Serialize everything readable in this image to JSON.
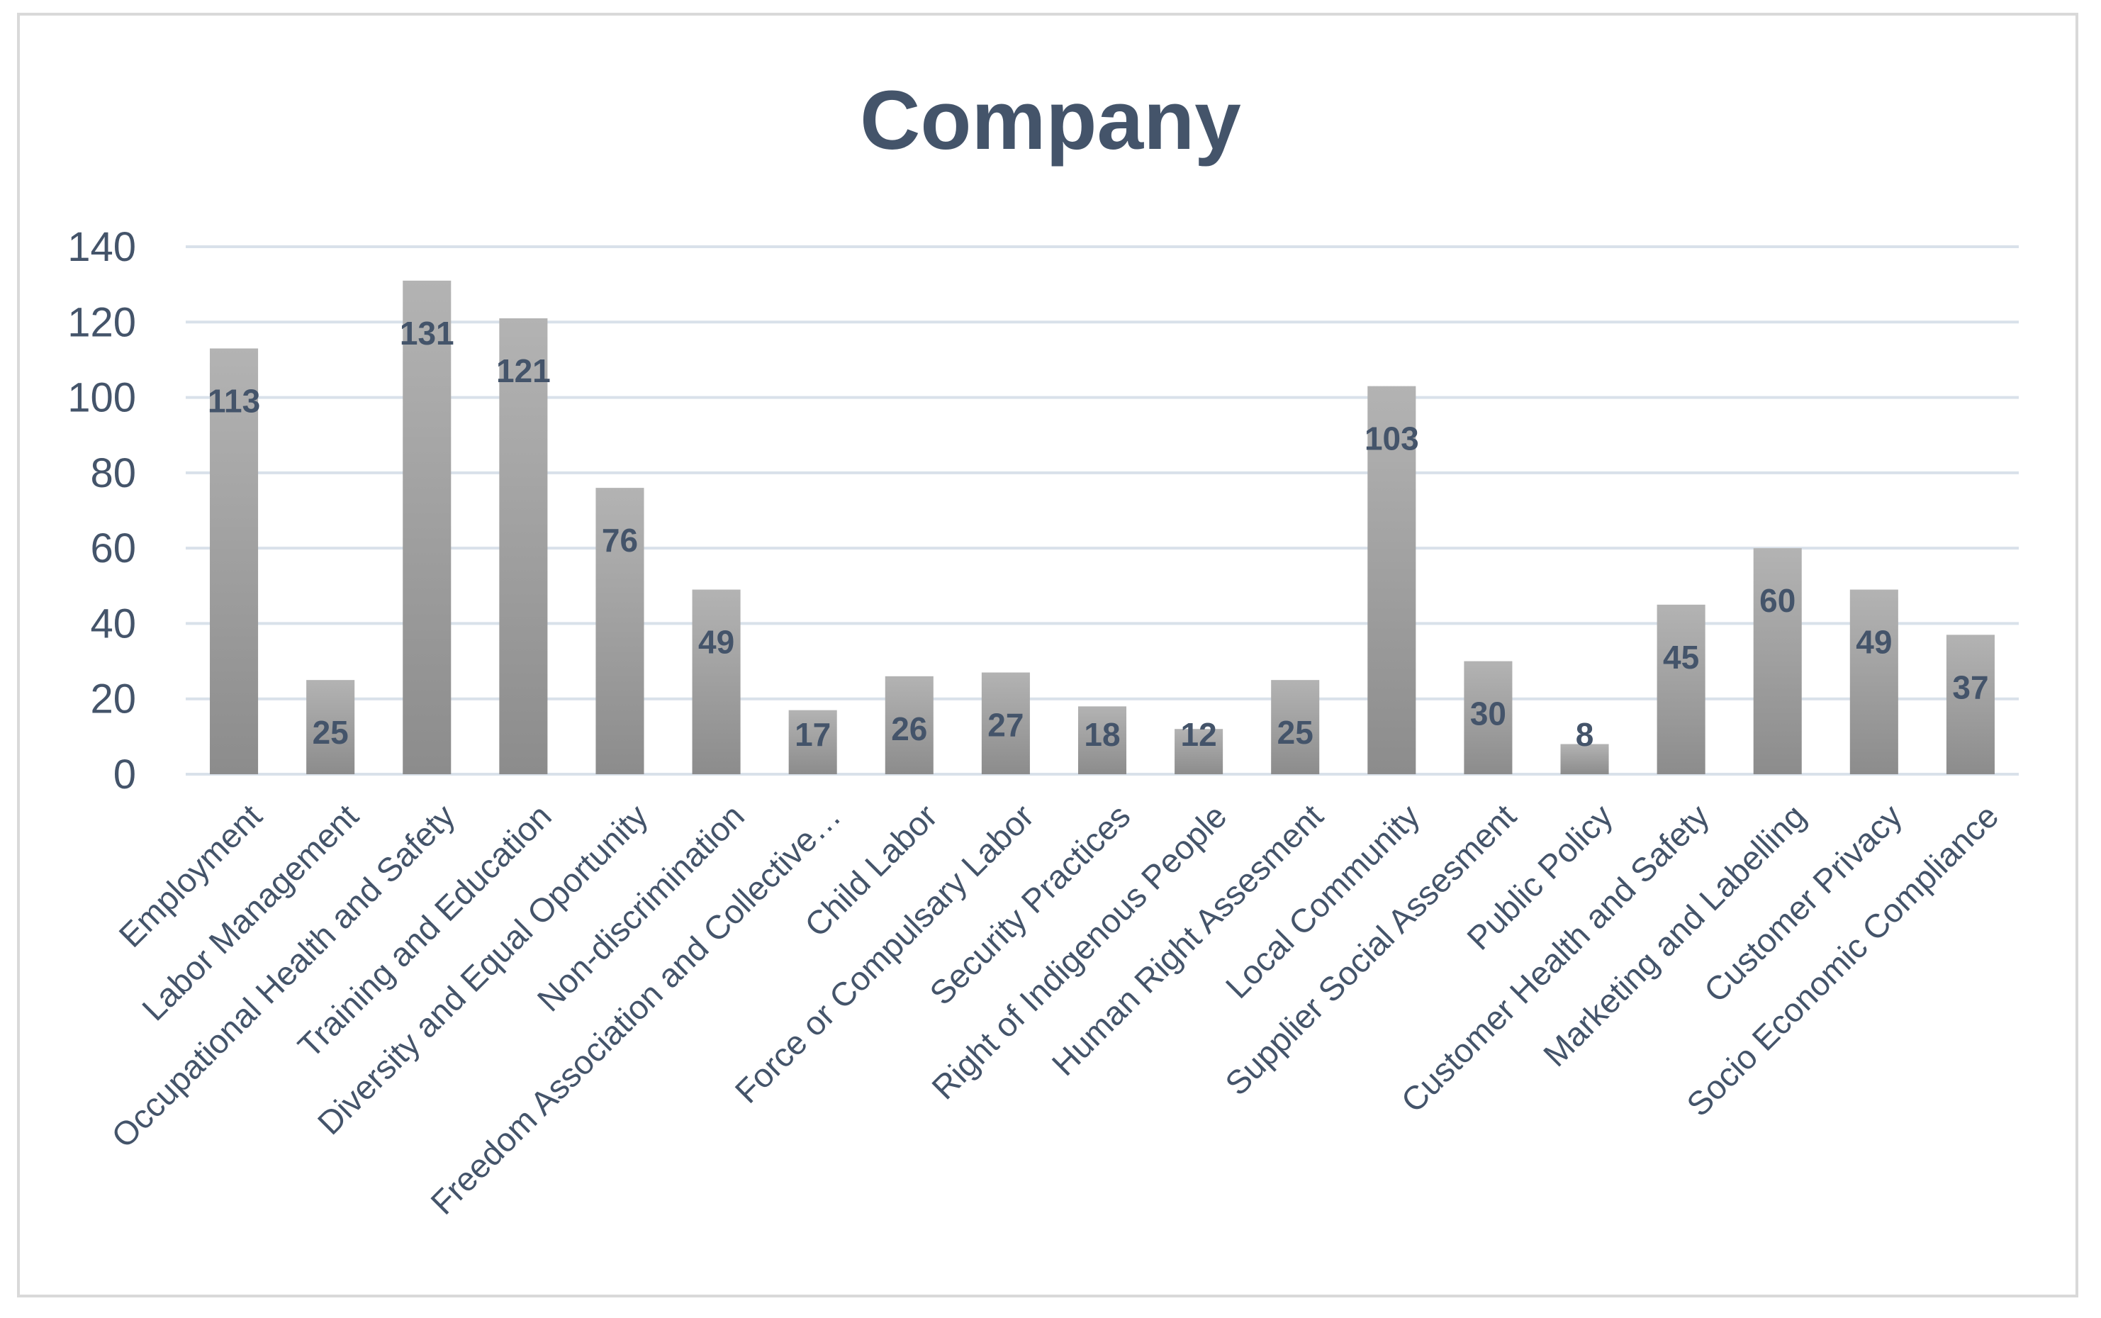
{
  "chart_data": {
    "type": "bar",
    "title": "Company",
    "xlabel": "",
    "ylabel": "",
    "ylim": [
      0,
      140
    ],
    "yticks": [
      0,
      20,
      40,
      60,
      80,
      100,
      120,
      140
    ],
    "grid": true,
    "legend": "none",
    "categories": [
      "Employment",
      "Labor Management",
      "Occupational Health and Safety",
      "Training and Education",
      "Diversity and Equal Oportunity",
      "Non-discrimination",
      "Freedom Association and Collective…",
      "Child Labor",
      "Force or Compulsary Labor",
      "Security Practices",
      "Right of Indigenous People",
      "Human Right Assesment",
      "Local Community",
      "Supplier Social Assesment",
      "Public Policy",
      "Customer Health and Safety",
      "Marketing and Labelling",
      "Customer Privacy",
      "Socio Economic Compliance"
    ],
    "values": [
      113,
      25,
      131,
      121,
      76,
      49,
      17,
      26,
      27,
      18,
      12,
      25,
      103,
      30,
      8,
      45,
      60,
      49,
      37
    ]
  },
  "colors": {
    "text": "#44546a",
    "gridline": "#d9e1ea",
    "bar_top": "#b3b3b3",
    "bar_bottom": "#8c8c8c",
    "frame": "#d9d9d9"
  }
}
